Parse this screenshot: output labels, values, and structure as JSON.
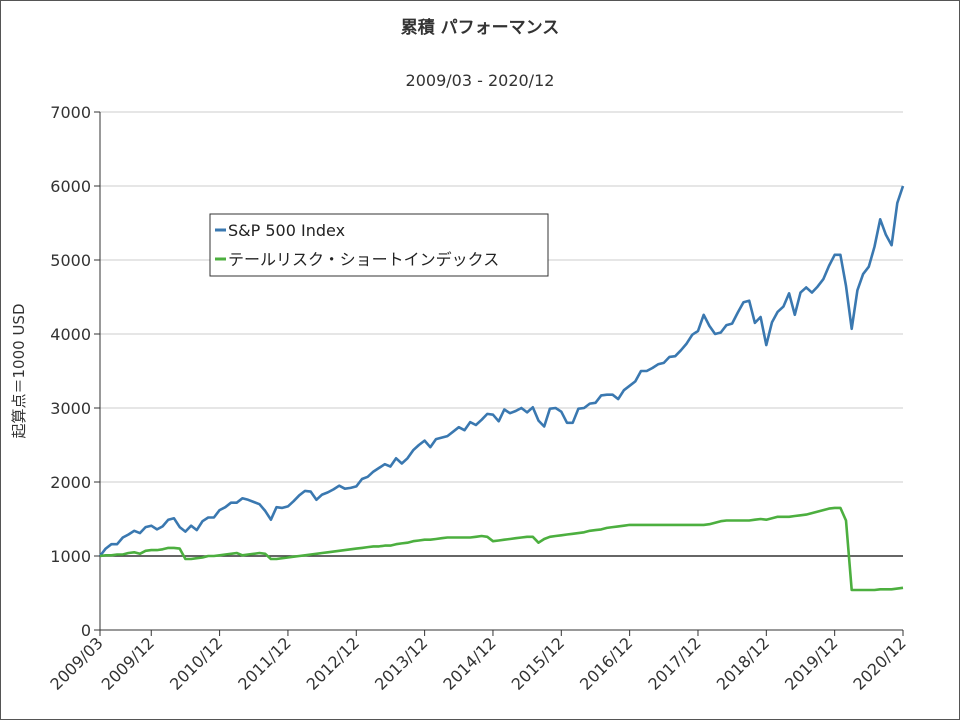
{
  "chart_data": {
    "type": "line",
    "title": "累積 パフォーマンス",
    "subtitle": "2009/03 - 2020/12",
    "ylabel": "起算点＝1000 USD",
    "ylim": [
      0,
      7000
    ],
    "yticks": [
      0,
      1000,
      2000,
      3000,
      4000,
      5000,
      6000,
      7000
    ],
    "xticks": [
      "2009/03",
      "2009/12",
      "2010/12",
      "2011/12",
      "2012/12",
      "2013/12",
      "2014/12",
      "2015/12",
      "2016/12",
      "2017/12",
      "2018/12",
      "2019/12",
      "2020/12"
    ],
    "baseline": 1000,
    "grid": true,
    "legend_position": "upper-left-inside",
    "colors": {
      "sp500": "#3a78b0",
      "tail": "#4caf3f",
      "baseline": "#333333",
      "grid": "#cccccc"
    },
    "series": [
      {
        "name": "S&P 500 Index",
        "color": "#3a78b0",
        "points": [
          [
            "2009/03",
            1000
          ],
          [
            "2009/04",
            1100
          ],
          [
            "2009/05",
            1160
          ],
          [
            "2009/06",
            1160
          ],
          [
            "2009/07",
            1250
          ],
          [
            "2009/08",
            1290
          ],
          [
            "2009/09",
            1340
          ],
          [
            "2009/10",
            1310
          ],
          [
            "2009/11",
            1390
          ],
          [
            "2009/12",
            1410
          ],
          [
            "2010/01",
            1360
          ],
          [
            "2010/02",
            1400
          ],
          [
            "2010/03",
            1490
          ],
          [
            "2010/04",
            1510
          ],
          [
            "2010/05",
            1390
          ],
          [
            "2010/06",
            1330
          ],
          [
            "2010/07",
            1410
          ],
          [
            "2010/08",
            1350
          ],
          [
            "2010/09",
            1470
          ],
          [
            "2010/10",
            1520
          ],
          [
            "2010/11",
            1520
          ],
          [
            "2010/12",
            1620
          ],
          [
            "2011/01",
            1660
          ],
          [
            "2011/02",
            1720
          ],
          [
            "2011/03",
            1720
          ],
          [
            "2011/04",
            1780
          ],
          [
            "2011/05",
            1760
          ],
          [
            "2011/06",
            1730
          ],
          [
            "2011/07",
            1700
          ],
          [
            "2011/08",
            1610
          ],
          [
            "2011/09",
            1490
          ],
          [
            "2011/10",
            1660
          ],
          [
            "2011/11",
            1650
          ],
          [
            "2011/12",
            1670
          ],
          [
            "2012/01",
            1740
          ],
          [
            "2012/02",
            1820
          ],
          [
            "2012/03",
            1880
          ],
          [
            "2012/04",
            1870
          ],
          [
            "2012/05",
            1760
          ],
          [
            "2012/06",
            1830
          ],
          [
            "2012/07",
            1860
          ],
          [
            "2012/08",
            1900
          ],
          [
            "2012/09",
            1950
          ],
          [
            "2012/10",
            1910
          ],
          [
            "2012/11",
            1920
          ],
          [
            "2012/12",
            1940
          ],
          [
            "2013/01",
            2040
          ],
          [
            "2013/02",
            2070
          ],
          [
            "2013/03",
            2140
          ],
          [
            "2013/04",
            2190
          ],
          [
            "2013/05",
            2240
          ],
          [
            "2013/06",
            2210
          ],
          [
            "2013/07",
            2320
          ],
          [
            "2013/08",
            2250
          ],
          [
            "2013/09",
            2320
          ],
          [
            "2013/10",
            2430
          ],
          [
            "2013/11",
            2500
          ],
          [
            "2013/12",
            2560
          ],
          [
            "2014/01",
            2470
          ],
          [
            "2014/02",
            2580
          ],
          [
            "2014/03",
            2600
          ],
          [
            "2014/04",
            2620
          ],
          [
            "2014/05",
            2680
          ],
          [
            "2014/06",
            2740
          ],
          [
            "2014/07",
            2700
          ],
          [
            "2014/08",
            2810
          ],
          [
            "2014/09",
            2770
          ],
          [
            "2014/10",
            2840
          ],
          [
            "2014/11",
            2920
          ],
          [
            "2014/12",
            2910
          ],
          [
            "2015/01",
            2820
          ],
          [
            "2015/02",
            2980
          ],
          [
            "2015/03",
            2930
          ],
          [
            "2015/04",
            2960
          ],
          [
            "2015/05",
            3000
          ],
          [
            "2015/06",
            2940
          ],
          [
            "2015/07",
            3010
          ],
          [
            "2015/08",
            2830
          ],
          [
            "2015/09",
            2750
          ],
          [
            "2015/10",
            2990
          ],
          [
            "2015/11",
            3000
          ],
          [
            "2015/12",
            2950
          ],
          [
            "2016/01",
            2800
          ],
          [
            "2016/02",
            2800
          ],
          [
            "2016/03",
            2990
          ],
          [
            "2016/04",
            3000
          ],
          [
            "2016/05",
            3060
          ],
          [
            "2016/06",
            3070
          ],
          [
            "2016/07",
            3170
          ],
          [
            "2016/08",
            3180
          ],
          [
            "2016/09",
            3180
          ],
          [
            "2016/10",
            3120
          ],
          [
            "2016/11",
            3240
          ],
          [
            "2016/12",
            3300
          ],
          [
            "2017/01",
            3360
          ],
          [
            "2017/02",
            3500
          ],
          [
            "2017/03",
            3500
          ],
          [
            "2017/04",
            3540
          ],
          [
            "2017/05",
            3590
          ],
          [
            "2017/06",
            3610
          ],
          [
            "2017/07",
            3690
          ],
          [
            "2017/08",
            3700
          ],
          [
            "2017/09",
            3780
          ],
          [
            "2017/10",
            3870
          ],
          [
            "2017/11",
            3990
          ],
          [
            "2017/12",
            4040
          ],
          [
            "2018/01",
            4260
          ],
          [
            "2018/02",
            4110
          ],
          [
            "2018/03",
            4000
          ],
          [
            "2018/04",
            4020
          ],
          [
            "2018/05",
            4120
          ],
          [
            "2018/06",
            4140
          ],
          [
            "2018/07",
            4290
          ],
          [
            "2018/08",
            4430
          ],
          [
            "2018/09",
            4450
          ],
          [
            "2018/10",
            4150
          ],
          [
            "2018/11",
            4230
          ],
          [
            "2018/12",
            3850
          ],
          [
            "2019/01",
            4160
          ],
          [
            "2019/02",
            4300
          ],
          [
            "2019/03",
            4370
          ],
          [
            "2019/04",
            4550
          ],
          [
            "2019/05",
            4260
          ],
          [
            "2019/06",
            4560
          ],
          [
            "2019/07",
            4630
          ],
          [
            "2019/08",
            4560
          ],
          [
            "2019/09",
            4640
          ],
          [
            "2019/10",
            4740
          ],
          [
            "2019/11",
            4920
          ],
          [
            "2019/12",
            5070
          ],
          [
            "2020/01",
            5070
          ],
          [
            "2020/02",
            4650
          ],
          [
            "2020/03",
            4070
          ],
          [
            "2020/04",
            4590
          ],
          [
            "2020/05",
            4810
          ],
          [
            "2020/06",
            4910
          ],
          [
            "2020/07",
            5180
          ],
          [
            "2020/08",
            5550
          ],
          [
            "2020/09",
            5340
          ],
          [
            "2020/10",
            5200
          ],
          [
            "2020/11",
            5770
          ],
          [
            "2020/12",
            6000
          ]
        ]
      },
      {
        "name": "テールリスク・ショートインデックス",
        "color": "#4caf3f",
        "points": [
          [
            "2009/03",
            1000
          ],
          [
            "2009/04",
            1010
          ],
          [
            "2009/05",
            1010
          ],
          [
            "2009/06",
            1020
          ],
          [
            "2009/07",
            1020
          ],
          [
            "2009/08",
            1040
          ],
          [
            "2009/09",
            1050
          ],
          [
            "2009/10",
            1030
          ],
          [
            "2009/11",
            1070
          ],
          [
            "2009/12",
            1080
          ],
          [
            "2010/01",
            1080
          ],
          [
            "2010/02",
            1090
          ],
          [
            "2010/03",
            1110
          ],
          [
            "2010/04",
            1110
          ],
          [
            "2010/05",
            1100
          ],
          [
            "2010/06",
            960
          ],
          [
            "2010/07",
            960
          ],
          [
            "2010/08",
            970
          ],
          [
            "2010/09",
            980
          ],
          [
            "2010/10",
            1000
          ],
          [
            "2010/11",
            1000
          ],
          [
            "2010/12",
            1010
          ],
          [
            "2011/01",
            1020
          ],
          [
            "2011/02",
            1030
          ],
          [
            "2011/03",
            1040
          ],
          [
            "2011/04",
            1010
          ],
          [
            "2011/05",
            1020
          ],
          [
            "2011/06",
            1030
          ],
          [
            "2011/07",
            1040
          ],
          [
            "2011/08",
            1030
          ],
          [
            "2011/09",
            960
          ],
          [
            "2011/10",
            960
          ],
          [
            "2011/11",
            970
          ],
          [
            "2011/12",
            980
          ],
          [
            "2012/01",
            990
          ],
          [
            "2012/02",
            1000
          ],
          [
            "2012/03",
            1010
          ],
          [
            "2012/04",
            1020
          ],
          [
            "2012/05",
            1030
          ],
          [
            "2012/06",
            1040
          ],
          [
            "2012/07",
            1050
          ],
          [
            "2012/08",
            1060
          ],
          [
            "2012/09",
            1070
          ],
          [
            "2012/10",
            1080
          ],
          [
            "2012/11",
            1090
          ],
          [
            "2012/12",
            1100
          ],
          [
            "2013/01",
            1110
          ],
          [
            "2013/02",
            1120
          ],
          [
            "2013/03",
            1130
          ],
          [
            "2013/04",
            1130
          ],
          [
            "2013/05",
            1140
          ],
          [
            "2013/06",
            1140
          ],
          [
            "2013/07",
            1160
          ],
          [
            "2013/08",
            1170
          ],
          [
            "2013/09",
            1180
          ],
          [
            "2013/10",
            1200
          ],
          [
            "2013/11",
            1210
          ],
          [
            "2013/12",
            1220
          ],
          [
            "2014/01",
            1220
          ],
          [
            "2014/02",
            1230
          ],
          [
            "2014/03",
            1240
          ],
          [
            "2014/04",
            1250
          ],
          [
            "2014/05",
            1250
          ],
          [
            "2014/06",
            1250
          ],
          [
            "2014/07",
            1250
          ],
          [
            "2014/08",
            1250
          ],
          [
            "2014/09",
            1260
          ],
          [
            "2014/10",
            1270
          ],
          [
            "2014/11",
            1260
          ],
          [
            "2014/12",
            1200
          ],
          [
            "2015/01",
            1210
          ],
          [
            "2015/02",
            1220
          ],
          [
            "2015/03",
            1230
          ],
          [
            "2015/04",
            1240
          ],
          [
            "2015/05",
            1250
          ],
          [
            "2015/06",
            1260
          ],
          [
            "2015/07",
            1260
          ],
          [
            "2015/08",
            1180
          ],
          [
            "2015/09",
            1230
          ],
          [
            "2015/10",
            1260
          ],
          [
            "2015/11",
            1270
          ],
          [
            "2015/12",
            1280
          ],
          [
            "2016/01",
            1290
          ],
          [
            "2016/02",
            1300
          ],
          [
            "2016/03",
            1310
          ],
          [
            "2016/04",
            1320
          ],
          [
            "2016/05",
            1340
          ],
          [
            "2016/06",
            1350
          ],
          [
            "2016/07",
            1360
          ],
          [
            "2016/08",
            1380
          ],
          [
            "2016/09",
            1390
          ],
          [
            "2016/10",
            1400
          ],
          [
            "2016/11",
            1410
          ],
          [
            "2016/12",
            1420
          ],
          [
            "2017/01",
            1420
          ],
          [
            "2017/02",
            1420
          ],
          [
            "2017/03",
            1420
          ],
          [
            "2017/04",
            1420
          ],
          [
            "2017/05",
            1420
          ],
          [
            "2017/06",
            1420
          ],
          [
            "2017/07",
            1420
          ],
          [
            "2017/08",
            1420
          ],
          [
            "2017/09",
            1420
          ],
          [
            "2017/10",
            1420
          ],
          [
            "2017/11",
            1420
          ],
          [
            "2017/12",
            1420
          ],
          [
            "2018/01",
            1420
          ],
          [
            "2018/02",
            1430
          ],
          [
            "2018/03",
            1450
          ],
          [
            "2018/04",
            1470
          ],
          [
            "2018/05",
            1480
          ],
          [
            "2018/06",
            1480
          ],
          [
            "2018/07",
            1480
          ],
          [
            "2018/08",
            1480
          ],
          [
            "2018/09",
            1480
          ],
          [
            "2018/10",
            1490
          ],
          [
            "2018/11",
            1500
          ],
          [
            "2018/12",
            1490
          ],
          [
            "2019/01",
            1510
          ],
          [
            "2019/02",
            1530
          ],
          [
            "2019/03",
            1530
          ],
          [
            "2019/04",
            1530
          ],
          [
            "2019/05",
            1540
          ],
          [
            "2019/06",
            1550
          ],
          [
            "2019/07",
            1560
          ],
          [
            "2019/08",
            1580
          ],
          [
            "2019/09",
            1600
          ],
          [
            "2019/10",
            1620
          ],
          [
            "2019/11",
            1640
          ],
          [
            "2019/12",
            1650
          ],
          [
            "2020/01",
            1650
          ],
          [
            "2020/02",
            1480
          ],
          [
            "2020/03",
            540
          ],
          [
            "2020/04",
            540
          ],
          [
            "2020/05",
            540
          ],
          [
            "2020/06",
            540
          ],
          [
            "2020/07",
            540
          ],
          [
            "2020/08",
            550
          ],
          [
            "2020/09",
            550
          ],
          [
            "2020/10",
            550
          ],
          [
            "2020/11",
            560
          ],
          [
            "2020/12",
            570
          ]
        ]
      }
    ]
  }
}
